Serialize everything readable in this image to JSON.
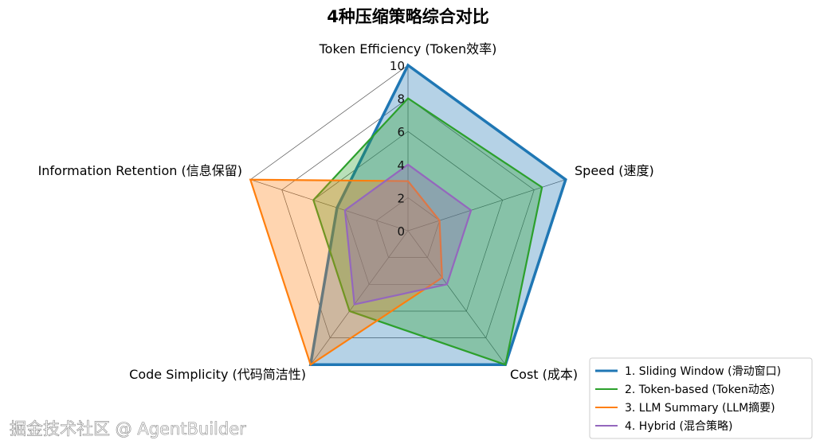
{
  "chart_data": {
    "type": "radar",
    "title": "4种压缩策略综合对比",
    "axes": [
      "Token Efficiency (Token效率)",
      "Speed (速度)",
      "Cost (成本)",
      "Code Simplicity (代码简洁性)",
      "Information Retention (信息保留)"
    ],
    "radial_ticks": [
      "0",
      "2",
      "4",
      "6",
      "8",
      "10"
    ],
    "rlim": [
      0,
      10
    ],
    "grid": true,
    "legend_position": "bottom-right",
    "series": [
      {
        "name": "1. Sliding Window (滑动窗口)",
        "values": [
          10,
          10,
          10,
          10,
          4.5
        ],
        "color": "#1f77b4"
      },
      {
        "name": "2. Token-based (Token动态)",
        "values": [
          8,
          8.5,
          10,
          6,
          6
        ],
        "color": "#2ca02c"
      },
      {
        "name": "3. LLM Summary (LLM摘要)",
        "values": [
          3,
          2,
          3.5,
          10,
          10
        ],
        "color": "#ff7f0e"
      },
      {
        "name": "4. Hybrid (混合策略)",
        "values": [
          4,
          4,
          4,
          5.5,
          4
        ],
        "color": "#9467bd"
      }
    ]
  },
  "watermark": "掘金技术社区 @ AgentBuilder"
}
